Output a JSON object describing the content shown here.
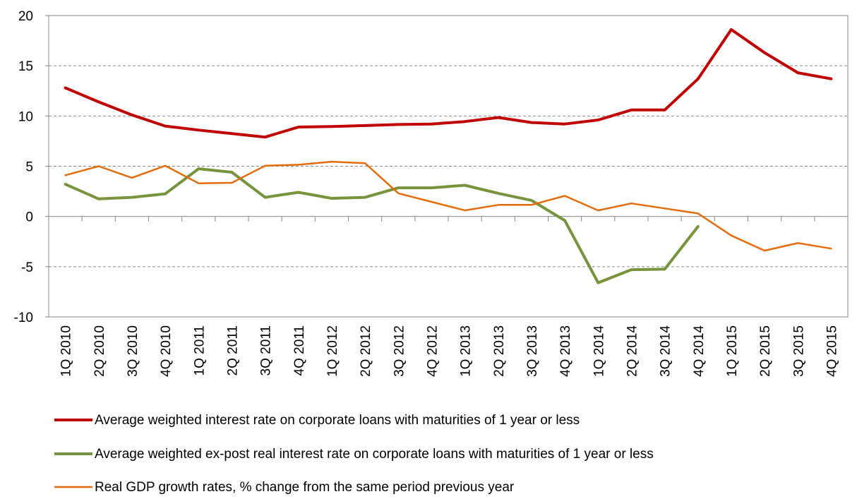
{
  "chart_data": {
    "type": "line",
    "title": "",
    "xlabel": "",
    "ylabel": "",
    "ylim": [
      -10,
      20
    ],
    "yticks": [
      -10,
      -5,
      0,
      5,
      10,
      15,
      20
    ],
    "grid": "horizontal-dashed",
    "legend_position": "bottom",
    "categories": [
      "1Q 2010",
      "2Q 2010",
      "3Q 2010",
      "4Q 2010",
      "1Q 2011",
      "2Q 2011",
      "3Q 2011",
      "4Q 2011",
      "1Q 2012",
      "2Q 2012",
      "3Q 2012",
      "4Q 2012",
      "1Q 2013",
      "2Q 2013",
      "3Q 2013",
      "4Q 2013",
      "1Q 2014",
      "2Q 2014",
      "3Q 2014",
      "4Q 2014",
      "1Q 2015",
      "2Q 2015",
      "3Q 2015",
      "4Q 2015"
    ],
    "series": [
      {
        "name": "Average weighted interest rate on corporate loans with maturities of 1 year or less",
        "color": "#c00000",
        "values": [
          12.8,
          11.4,
          10.1,
          9.0,
          8.6,
          8.25,
          7.9,
          8.9,
          8.95,
          9.05,
          9.15,
          9.2,
          9.45,
          9.85,
          9.35,
          9.2,
          9.6,
          10.6,
          10.6,
          13.7,
          18.6,
          16.3,
          14.3,
          13.7
        ]
      },
      {
        "name": "Average weighted ex-post real interest rate on corporate loans with maturities of 1 year or less",
        "color": "#77933c",
        "values": [
          3.2,
          1.75,
          1.9,
          2.25,
          4.75,
          4.4,
          1.9,
          2.4,
          1.8,
          1.9,
          2.85,
          2.85,
          3.1,
          2.3,
          1.6,
          -0.4,
          -6.6,
          -5.3,
          -5.25,
          -1.0,
          null,
          null,
          null,
          null
        ]
      },
      {
        "name": "Real GDP growth rates, % change from the same period previous year",
        "color": "#e46c0a",
        "values": [
          4.1,
          5.0,
          3.85,
          5.05,
          3.3,
          3.35,
          5.05,
          5.15,
          5.45,
          5.3,
          2.3,
          1.45,
          0.6,
          1.15,
          1.15,
          2.05,
          0.6,
          1.3,
          0.8,
          0.3,
          -1.9,
          -3.4,
          -2.65,
          -3.2
        ]
      }
    ]
  }
}
